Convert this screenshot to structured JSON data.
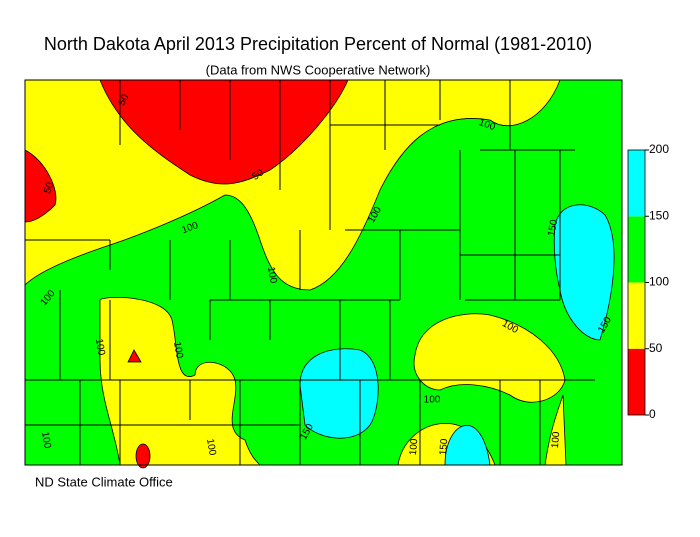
{
  "title": "North Dakota April 2013 Precipitation Percent of Normal (1981-2010)",
  "subtitle": "(Data from NWS Cooperative Network)",
  "credit": "ND State Climate Office",
  "legend": {
    "ticks": [
      0,
      50,
      100,
      150,
      200
    ],
    "colors": [
      "#ff0000",
      "#ffff00",
      "#00ff00",
      "#00ffff"
    ]
  },
  "contour_labels": [
    "50",
    "50",
    "50",
    "100",
    "100",
    "100",
    "100",
    "100",
    "100",
    "100",
    "100",
    "100",
    "100",
    "100",
    "150",
    "150",
    "150",
    "100",
    "150",
    "100"
  ]
}
